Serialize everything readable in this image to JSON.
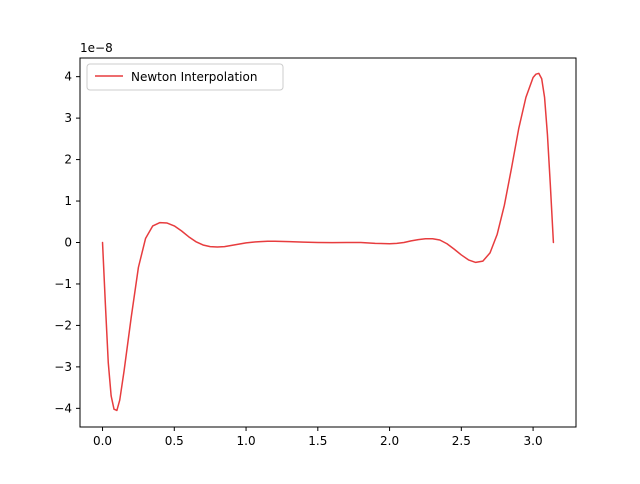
{
  "chart_data": {
    "type": "line",
    "title": "",
    "xlabel": "",
    "ylabel": "",
    "xlim": [
      -0.157,
      3.299
    ],
    "ylim": [
      -4.45,
      4.45
    ],
    "y_scale_label": "1e−8",
    "x_ticks": [
      {
        "value": 0.0,
        "label": "0.0"
      },
      {
        "value": 0.5,
        "label": "0.5"
      },
      {
        "value": 1.0,
        "label": "1.0"
      },
      {
        "value": 1.5,
        "label": "1.5"
      },
      {
        "value": 2.0,
        "label": "2.0"
      },
      {
        "value": 2.5,
        "label": "2.5"
      },
      {
        "value": 3.0,
        "label": "3.0"
      }
    ],
    "y_ticks": [
      {
        "value": -4,
        "label": "−4"
      },
      {
        "value": -3,
        "label": "−3"
      },
      {
        "value": -2,
        "label": "−2"
      },
      {
        "value": -1,
        "label": "−1"
      },
      {
        "value": 0,
        "label": "0"
      },
      {
        "value": 1,
        "label": "1"
      },
      {
        "value": 2,
        "label": "2"
      },
      {
        "value": 3,
        "label": "3"
      },
      {
        "value": 4,
        "label": "4"
      }
    ],
    "grid": false,
    "legend_position": "upper-left",
    "series": [
      {
        "name": "Newton Interpolation",
        "color": "#e31a1c",
        "x": [
          0.0,
          0.02,
          0.04,
          0.06,
          0.08,
          0.1,
          0.12,
          0.15,
          0.2,
          0.25,
          0.3,
          0.35,
          0.4,
          0.45,
          0.5,
          0.55,
          0.6,
          0.65,
          0.7,
          0.75,
          0.8,
          0.85,
          0.9,
          0.95,
          1.0,
          1.05,
          1.1,
          1.15,
          1.2,
          1.3,
          1.4,
          1.5,
          1.6,
          1.7,
          1.8,
          1.9,
          2.0,
          2.05,
          2.1,
          2.15,
          2.2,
          2.25,
          2.3,
          2.35,
          2.4,
          2.45,
          2.5,
          2.55,
          2.6,
          2.65,
          2.7,
          2.75,
          2.8,
          2.85,
          2.9,
          2.95,
          3.0,
          3.02,
          3.04,
          3.06,
          3.08,
          3.1,
          3.12,
          3.1416
        ],
        "y": [
          0.0,
          -1.5,
          -2.9,
          -3.7,
          -4.02,
          -4.05,
          -3.8,
          -3.1,
          -1.8,
          -0.6,
          0.1,
          0.4,
          0.48,
          0.47,
          0.4,
          0.28,
          0.14,
          0.02,
          -0.06,
          -0.1,
          -0.11,
          -0.1,
          -0.07,
          -0.04,
          -0.01,
          0.01,
          0.02,
          0.03,
          0.03,
          0.02,
          0.01,
          0.0,
          -0.003,
          0.0,
          0.0,
          -0.02,
          -0.03,
          -0.02,
          0.0,
          0.04,
          0.07,
          0.09,
          0.09,
          0.06,
          -0.03,
          -0.16,
          -0.3,
          -0.42,
          -0.48,
          -0.45,
          -0.25,
          0.2,
          0.9,
          1.8,
          2.75,
          3.5,
          3.98,
          4.06,
          4.08,
          3.95,
          3.5,
          2.6,
          1.4,
          0.0
        ]
      }
    ]
  }
}
